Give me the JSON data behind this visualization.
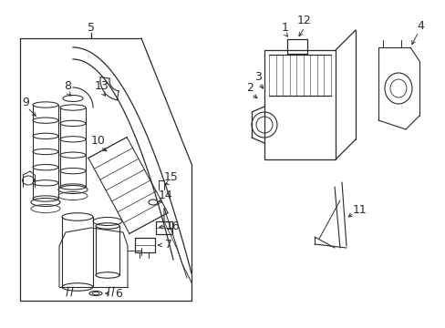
{
  "bg_color": "#ffffff",
  "line_color": "#2a2a2a",
  "fig_width": 4.89,
  "fig_height": 3.6,
  "dpi": 100,
  "label_fs": 9,
  "lw": 0.9
}
